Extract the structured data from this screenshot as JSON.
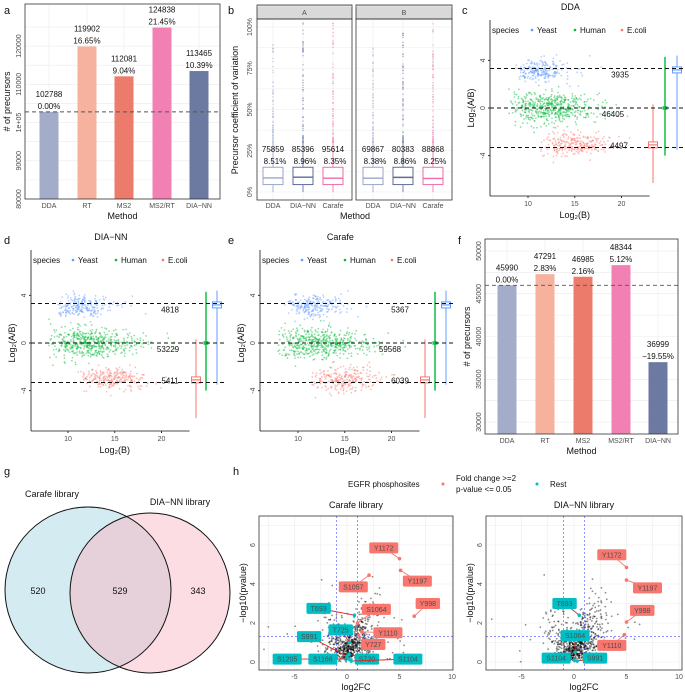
{
  "panel_labels": [
    "a",
    "b",
    "c",
    "d",
    "e",
    "f",
    "g",
    "h"
  ],
  "chart_data": [
    {
      "id": "a",
      "type": "bar",
      "categories": [
        "DDA",
        "RT",
        "MS2",
        "MS2/RT",
        "DIA−NN"
      ],
      "values": [
        102788,
        119902,
        112081,
        124838,
        113465
      ],
      "data_labels": [
        "0.00%",
        "16.65%",
        "9.04%",
        "21.45%",
        "10.39%"
      ],
      "colors": [
        "#a3adc9",
        "#f6b29e",
        "#ec7b6b",
        "#f281b3",
        "#6c7aa1"
      ],
      "xlabel": "Method",
      "ylabel": "# of precursors",
      "ylim": [
        80000,
        131000
      ],
      "yticks": [
        80000,
        90000,
        100000,
        110000,
        120000
      ],
      "ytick_labels": [
        "80000",
        "90000",
        "1e+05",
        "110000",
        "120000"
      ],
      "reference_line": 102788
    },
    {
      "id": "b",
      "type": "box",
      "facets": [
        {
          "label": "A",
          "categories": [
            "DDA",
            "DIA−NN",
            "Carafe"
          ],
          "counts": [
            "75859",
            "85396",
            "95614"
          ],
          "medians": [
            "8.51%",
            "8.96%",
            "8.35%"
          ]
        },
        {
          "label": "B",
          "categories": [
            "DDA",
            "DIA−NN",
            "Carafe"
          ],
          "counts": [
            "69867",
            "80383",
            "88868"
          ],
          "medians": [
            "8.38%",
            "8.86%",
            "8.25%"
          ]
        }
      ],
      "box_colors": [
        "#9aa5c8",
        "#5b6b9b",
        "#f26aa9"
      ],
      "xlabel": "Method",
      "ylabel": "Precursor coefficient of variation",
      "ylim": [
        0,
        100
      ],
      "yticks": [
        0,
        25,
        50,
        75,
        100
      ],
      "ytick_labels": [
        "0%",
        "25%",
        "50%",
        "75%",
        "100%"
      ]
    },
    {
      "id": "c",
      "type": "scatter",
      "title": "DDA",
      "legend": {
        "title": "species",
        "items": [
          {
            "name": "Yeast",
            "color": "#619CFF"
          },
          {
            "name": "Human",
            "color": "#00BA38"
          },
          {
            "name": "E.coli",
            "color": "#F8766D"
          }
        ]
      },
      "counts": [
        "3935",
        "46405",
        "4497"
      ],
      "hlines": [
        3.32,
        0,
        -3.32
      ],
      "xlabel": "Log₂(B)",
      "ylabel": "Log₂(A/B)",
      "xticks": [
        10,
        15,
        20
      ],
      "yticks": [
        4,
        0,
        -4
      ]
    },
    {
      "id": "d",
      "type": "scatter",
      "title": "DIA−NN",
      "legend": {
        "title": "species",
        "items": [
          {
            "name": "Yeast",
            "color": "#619CFF"
          },
          {
            "name": "Human",
            "color": "#00BA38"
          },
          {
            "name": "E.coli",
            "color": "#F8766D"
          }
        ]
      },
      "counts": [
        "4818",
        "53229",
        "5411"
      ],
      "hlines": [
        3.32,
        0,
        -3.32
      ],
      "xlabel": "Log₂(B)",
      "ylabel": "Log₂(A/B)",
      "xticks": [
        10,
        15,
        20
      ],
      "yticks": [
        4,
        0,
        -4
      ]
    },
    {
      "id": "e",
      "type": "scatter",
      "title": "Carafe",
      "legend": {
        "title": "species",
        "items": [
          {
            "name": "Yeast",
            "color": "#619CFF"
          },
          {
            "name": "Human",
            "color": "#00BA38"
          },
          {
            "name": "E.coli",
            "color": "#F8766D"
          }
        ]
      },
      "counts": [
        "5367",
        "59568",
        "6039"
      ],
      "hlines": [
        3.32,
        0,
        -3.32
      ],
      "xlabel": "Log₂(B)",
      "ylabel": "Log₂(A/B)",
      "xticks": [
        10,
        15,
        20
      ],
      "yticks": [
        4,
        0,
        -4
      ]
    },
    {
      "id": "f",
      "type": "bar",
      "categories": [
        "DDA",
        "RT",
        "MS2",
        "MS2/RT",
        "DIA−NN"
      ],
      "values": [
        45990,
        47291,
        46985,
        48344,
        36999
      ],
      "data_labels": [
        "0.00%",
        "2.83%",
        "2.16%",
        "5.12%",
        "−19.55%"
      ],
      "colors": [
        "#a3adc9",
        "#f6b29e",
        "#ec7b6b",
        "#f281b3",
        "#6c7aa1"
      ],
      "xlabel": "Method",
      "ylabel": "# of precursors",
      "ylim": [
        28600,
        51400
      ],
      "yticks": [
        30000,
        35000,
        40000,
        45000,
        50000
      ],
      "ytick_labels": [
        "30000",
        "35000",
        "40000",
        "45000",
        "50000"
      ],
      "reference_line": 45990
    },
    {
      "id": "g",
      "type": "venn",
      "sets": [
        "Carafe library",
        "DIA−NN library"
      ],
      "values": {
        "only_first": "520",
        "both": "529",
        "only_second": "343"
      },
      "colors": [
        "#d4ebf2",
        "#fcdde3"
      ]
    },
    {
      "id": "h",
      "type": "scatter",
      "legend": {
        "title": "EGFR phosphosites",
        "items": [
          {
            "name": "Fold change >=2",
            "name2": "p-value <= 0.05",
            "color": "#F8766D"
          },
          {
            "name": "Rest",
            "color": "#00BFC4"
          }
        ]
      },
      "xlabel": "log2FC",
      "ylabel": "−log10(pvalue)",
      "xticks": [
        -5,
        0,
        5,
        10
      ],
      "yticks": [
        0,
        2,
        4,
        6
      ],
      "xlim": [
        -8.4,
        10.1
      ],
      "ylim": [
        -0.4,
        7.5
      ],
      "vlines": [
        -1,
        1
      ],
      "hline": 1.3,
      "panels": [
        {
          "title": "Carafe library",
          "points": [
            {
              "site": "Y1172",
              "log2fc": 5.0,
              "neglog10p": 5.3,
              "group": "sig"
            },
            {
              "site": "Y1197",
              "log2fc": 5.1,
              "neglog10p": 4.7,
              "group": "sig"
            },
            {
              "site": "S1057",
              "log2fc": 2.1,
              "neglog10p": 4.45,
              "group": "sig"
            },
            {
              "site": "Y998",
              "log2fc": 6.4,
              "neglog10p": 2.35,
              "group": "sig"
            },
            {
              "site": "S1064",
              "log2fc": 1.0,
              "neglog10p": 2.0,
              "group": "sig"
            },
            {
              "site": "Y1110",
              "log2fc": 1.4,
              "neglog10p": 1.55,
              "group": "sig"
            },
            {
              "site": "Y727",
              "log2fc": 1.1,
              "neglog10p": 1.35,
              "group": "sig"
            },
            {
              "site": "T693",
              "log2fc": 0.7,
              "neglog10p": 2.4,
              "group": "rest"
            },
            {
              "site": "T725",
              "log2fc": 0.25,
              "neglog10p": 1.0,
              "group": "rest"
            },
            {
              "site": "S991",
              "log2fc": 0.0,
              "neglog10p": 0.3,
              "group": "rest"
            },
            {
              "site": "S1205",
              "log2fc": -0.1,
              "neglog10p": 0.15,
              "group": "rest"
            },
            {
              "site": "S1166",
              "log2fc": 0.2,
              "neglog10p": 0.15,
              "group": "rest"
            },
            {
              "site": "S720",
              "log2fc": 0.2,
              "neglog10p": 0.4,
              "group": "rest"
            },
            {
              "site": "S1104",
              "log2fc": 0.4,
              "neglog10p": 0.05,
              "group": "rest"
            }
          ]
        },
        {
          "title": "DIA−NN library",
          "points": [
            {
              "site": "Y1172",
              "log2fc": 5.0,
              "neglog10p": 4.85,
              "group": "sig"
            },
            {
              "site": "Y1197",
              "log2fc": 5.0,
              "neglog10p": 4.2,
              "group": "sig"
            },
            {
              "site": "Y998",
              "log2fc": 5.0,
              "neglog10p": 2.05,
              "group": "sig"
            },
            {
              "site": "Y1110",
              "log2fc": 4.8,
              "neglog10p": 1.4,
              "group": "sig"
            },
            {
              "site": "T693",
              "log2fc": 0.5,
              "neglog10p": 2.4,
              "group": "rest"
            },
            {
              "site": "S1064",
              "log2fc": 0.1,
              "neglog10p": 0.5,
              "group": "rest"
            },
            {
              "site": "S1104",
              "log2fc": 0.0,
              "neglog10p": 0.1,
              "group": "rest"
            },
            {
              "site": "S991",
              "log2fc": 0.3,
              "neglog10p": 0.05,
              "group": "rest"
            }
          ]
        }
      ]
    }
  ]
}
